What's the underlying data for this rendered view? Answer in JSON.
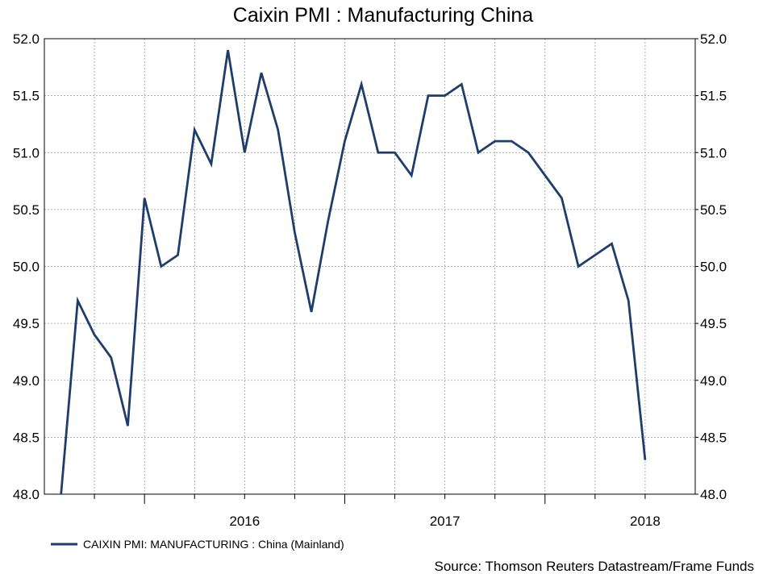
{
  "chart_data": {
    "type": "line",
    "title": "Caixin PMI : Manufacturing China",
    "source": "Source: Thomson Reuters Datastream/Frame Funds",
    "ylim": [
      48.0,
      52.0
    ],
    "yticks": [
      "52.0",
      "51.5",
      "51.0",
      "50.5",
      "50.0",
      "49.5",
      "49.0",
      "48.5",
      "48.0"
    ],
    "year_labels": [
      "2016",
      "2017",
      "2018"
    ],
    "grid": true,
    "legend_position": "bottom-left",
    "colors": {
      "series": "#1f3d6b"
    },
    "start_month": "2015-08",
    "series": [
      {
        "name": "CAIXIN PMI: MANUFACTURING : China (Mainland)",
        "values": [
          48.0,
          49.7,
          49.4,
          49.2,
          48.6,
          50.6,
          50.0,
          50.1,
          51.2,
          50.9,
          51.9,
          51.0,
          51.7,
          51.2,
          50.3,
          49.6,
          50.4,
          51.1,
          51.6,
          51.0,
          51.0,
          50.8,
          51.5,
          51.5,
          51.6,
          51.0,
          51.1,
          51.1,
          51.0,
          50.8,
          50.6,
          50.0,
          50.1,
          50.2,
          49.7,
          48.3
        ]
      }
    ]
  }
}
